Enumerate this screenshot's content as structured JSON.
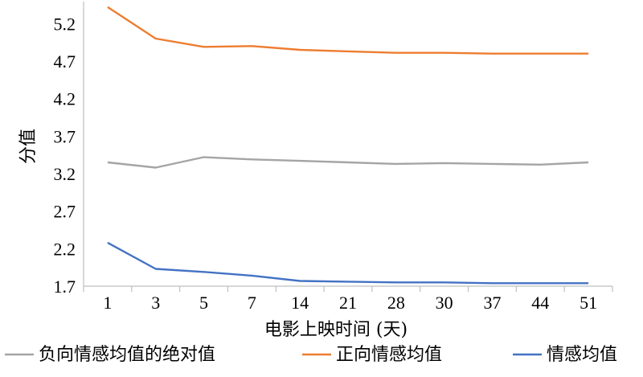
{
  "chart_data": {
    "type": "line",
    "title": "",
    "xlabel": "电影上映时间 (天)",
    "ylabel": "分值",
    "categories": [
      "1",
      "3",
      "5",
      "7",
      "14",
      "21",
      "28",
      "30",
      "37",
      "44",
      "51"
    ],
    "yticks": [
      "1.7",
      "2.2",
      "2.7",
      "3.2",
      "3.7",
      "4.2",
      "4.7",
      "5.2"
    ],
    "ylim": [
      1.7,
      5.45
    ],
    "grid": false,
    "legend_position": "bottom",
    "series": [
      {
        "name": "负向情感均值的绝对值",
        "color": "#a5a5a5",
        "values": [
          3.35,
          3.28,
          3.42,
          3.39,
          3.37,
          3.35,
          3.33,
          3.34,
          3.33,
          3.32,
          3.35
        ]
      },
      {
        "name": "正向情感均值",
        "color": "#ed7d31",
        "values": [
          5.42,
          5.0,
          4.89,
          4.9,
          4.85,
          4.83,
          4.81,
          4.81,
          4.8,
          4.8,
          4.8
        ]
      },
      {
        "name": "情感均值",
        "color": "#4472c4",
        "values": [
          2.28,
          1.93,
          1.89,
          1.84,
          1.77,
          1.76,
          1.75,
          1.75,
          1.74,
          1.74,
          1.74
        ]
      }
    ]
  }
}
